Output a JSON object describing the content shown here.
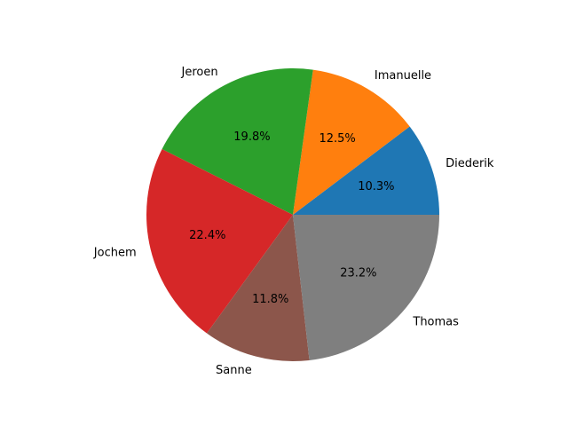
{
  "chart_data": {
    "type": "pie",
    "title": "",
    "slices": [
      {
        "label": "Diederik",
        "percent": "10.3%",
        "value": 10.3,
        "color": "#1f77b4"
      },
      {
        "label": "Imanuelle",
        "percent": "12.5%",
        "value": 12.5,
        "color": "#ff7f0e"
      },
      {
        "label": "Jeroen",
        "percent": "19.8%",
        "value": 19.8,
        "color": "#2ca02c"
      },
      {
        "label": "Jochem",
        "percent": "22.4%",
        "value": 22.4,
        "color": "#d62728"
      },
      {
        "label": "Sanne",
        "percent": "11.8%",
        "value": 11.8,
        "color": "#8c564b"
      },
      {
        "label": "Thomas",
        "percent": "23.2%",
        "value": 23.2,
        "color": "#7f7f7f"
      }
    ],
    "start_angle": 0,
    "direction": "counterclockwise",
    "legend": "none"
  }
}
